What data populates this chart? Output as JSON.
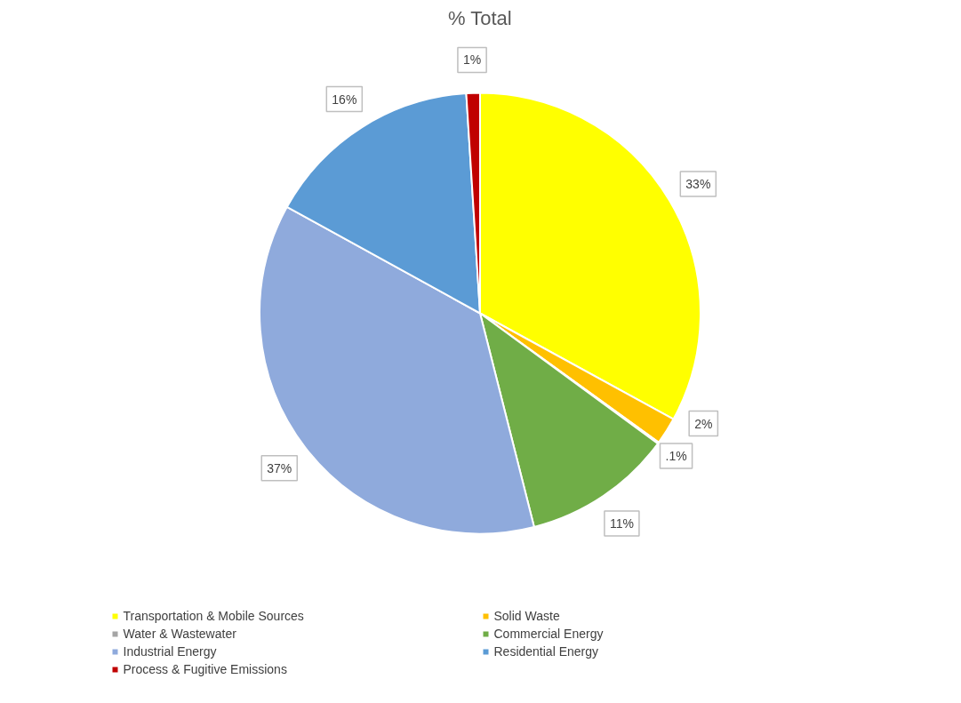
{
  "chart_data": {
    "type": "pie",
    "title": "% Total",
    "categories": [
      "Transportation & Mobile Sources",
      "Solid Waste",
      "Water & Wastewater",
      "Commercial Energy",
      "Industrial Energy",
      "Residential Energy",
      "Process & Fugitive Emissions"
    ],
    "values": [
      33,
      2,
      0.1,
      11,
      37,
      16,
      1
    ],
    "value_labels": [
      "33%",
      "2%",
      ".1%",
      "11%",
      "37%",
      "16%",
      "1%"
    ],
    "colors": [
      "#ffff00",
      "#ffc000",
      "#a5a5a5",
      "#70ad47",
      "#8faadc",
      "#5b9bd5",
      "#c00000"
    ],
    "legend": "bottom"
  }
}
